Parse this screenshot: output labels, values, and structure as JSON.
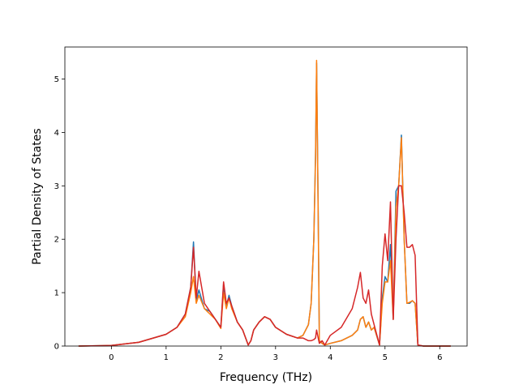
{
  "chart_data": {
    "type": "line",
    "xlabel": "Frequency (THz)",
    "ylabel": "Partial Density of States",
    "xlim": [
      -0.85,
      6.5
    ],
    "ylim": [
      0,
      5.6
    ],
    "xticks": [
      0,
      1,
      2,
      3,
      4,
      5,
      6
    ],
    "yticks": [
      0,
      1,
      2,
      3,
      4,
      5
    ],
    "grid": false,
    "series": [
      {
        "color": "#1f77b4",
        "x": [
          -0.6,
          0,
          0.5,
          1.0,
          1.2,
          1.35,
          1.45,
          1.5,
          1.55,
          1.6,
          1.7,
          1.8,
          1.9,
          2.0,
          2.05,
          2.1,
          2.15,
          2.2,
          2.3,
          2.4,
          2.5,
          2.55,
          2.6,
          2.7,
          2.8,
          2.9,
          3.0,
          3.2,
          3.4,
          3.5,
          3.6,
          3.65,
          3.7,
          3.73,
          3.75,
          3.78,
          3.8,
          3.85,
          3.9,
          4.0,
          4.2,
          4.4,
          4.5,
          4.55,
          4.6,
          4.65,
          4.7,
          4.75,
          4.8,
          4.9,
          4.95,
          5.0,
          5.05,
          5.1,
          5.15,
          5.2,
          5.25,
          5.3,
          5.35,
          5.4,
          5.45,
          5.5,
          5.55,
          5.6,
          5.7,
          6.2
        ],
        "y": [
          0,
          0.01,
          0.07,
          0.22,
          0.35,
          0.6,
          1.1,
          1.95,
          0.85,
          1.05,
          0.7,
          0.65,
          0.5,
          0.35,
          1.15,
          0.75,
          0.95,
          0.75,
          0.45,
          0.3,
          0.02,
          0.1,
          0.3,
          0.45,
          0.55,
          0.5,
          0.35,
          0.22,
          0.15,
          0.2,
          0.4,
          0.8,
          2.0,
          3.6,
          5.3,
          2.5,
          0.1,
          0.05,
          0.02,
          0.05,
          0.1,
          0.2,
          0.3,
          0.5,
          0.55,
          0.35,
          0.45,
          0.3,
          0.35,
          0.02,
          0.9,
          1.3,
          1.2,
          1.9,
          0.5,
          2.9,
          3.0,
          3.95,
          2.0,
          0.8,
          0.8,
          0.85,
          0.8,
          0.02,
          0,
          0
        ]
      },
      {
        "color": "#ff7f0e",
        "x": [
          -0.6,
          0,
          0.5,
          1.0,
          1.2,
          1.35,
          1.45,
          1.5,
          1.55,
          1.6,
          1.7,
          1.8,
          1.9,
          2.0,
          2.05,
          2.1,
          2.15,
          2.2,
          2.3,
          2.4,
          2.5,
          2.55,
          2.6,
          2.7,
          2.8,
          2.9,
          3.0,
          3.2,
          3.4,
          3.5,
          3.6,
          3.65,
          3.7,
          3.73,
          3.75,
          3.78,
          3.8,
          3.85,
          3.9,
          4.0,
          4.2,
          4.4,
          4.5,
          4.55,
          4.6,
          4.65,
          4.7,
          4.75,
          4.8,
          4.9,
          4.95,
          5.0,
          5.05,
          5.1,
          5.15,
          5.2,
          5.25,
          5.3,
          5.35,
          5.4,
          5.45,
          5.5,
          5.55,
          5.6,
          5.7,
          6.2
        ],
        "y": [
          0,
          0.01,
          0.07,
          0.22,
          0.35,
          0.55,
          1.0,
          1.3,
          0.8,
          0.95,
          0.7,
          0.6,
          0.5,
          0.33,
          1.0,
          0.7,
          0.9,
          0.7,
          0.45,
          0.3,
          0.02,
          0.1,
          0.3,
          0.45,
          0.55,
          0.5,
          0.35,
          0.22,
          0.15,
          0.2,
          0.4,
          0.8,
          2.0,
          3.5,
          5.35,
          2.4,
          0.1,
          0.05,
          0.02,
          0.05,
          0.1,
          0.2,
          0.3,
          0.5,
          0.55,
          0.35,
          0.45,
          0.3,
          0.35,
          0.02,
          0.8,
          1.2,
          1.2,
          1.6,
          0.5,
          2.6,
          3.0,
          3.9,
          2.0,
          0.8,
          0.82,
          0.85,
          0.8,
          0.02,
          0,
          0
        ]
      },
      {
        "color": "#d62728",
        "x": [
          -0.6,
          0,
          0.5,
          1.0,
          1.2,
          1.35,
          1.45,
          1.5,
          1.55,
          1.6,
          1.7,
          1.8,
          1.9,
          2.0,
          2.05,
          2.1,
          2.15,
          2.2,
          2.3,
          2.4,
          2.5,
          2.55,
          2.6,
          2.7,
          2.8,
          2.9,
          3.0,
          3.2,
          3.4,
          3.5,
          3.6,
          3.65,
          3.7,
          3.73,
          3.75,
          3.78,
          3.8,
          3.85,
          3.9,
          4.0,
          4.2,
          4.4,
          4.5,
          4.55,
          4.6,
          4.65,
          4.7,
          4.75,
          4.8,
          4.9,
          4.95,
          5.0,
          5.05,
          5.1,
          5.15,
          5.2,
          5.25,
          5.3,
          5.35,
          5.4,
          5.45,
          5.5,
          5.55,
          5.6,
          5.7,
          6.2
        ],
        "y": [
          0,
          0.01,
          0.07,
          0.22,
          0.35,
          0.6,
          1.1,
          1.85,
          0.9,
          1.4,
          0.8,
          0.65,
          0.5,
          0.35,
          1.2,
          0.8,
          0.9,
          0.75,
          0.45,
          0.3,
          0.02,
          0.1,
          0.3,
          0.45,
          0.55,
          0.5,
          0.35,
          0.22,
          0.15,
          0.15,
          0.1,
          0.1,
          0.12,
          0.15,
          0.3,
          0.15,
          0.05,
          0.1,
          0.02,
          0.2,
          0.35,
          0.7,
          1.1,
          1.38,
          0.9,
          0.8,
          1.05,
          0.6,
          0.4,
          0.02,
          1.5,
          2.1,
          1.6,
          2.7,
          0.5,
          2.0,
          3.0,
          3.0,
          2.5,
          1.85,
          1.85,
          1.9,
          1.7,
          0.02,
          0,
          0
        ]
      }
    ]
  }
}
